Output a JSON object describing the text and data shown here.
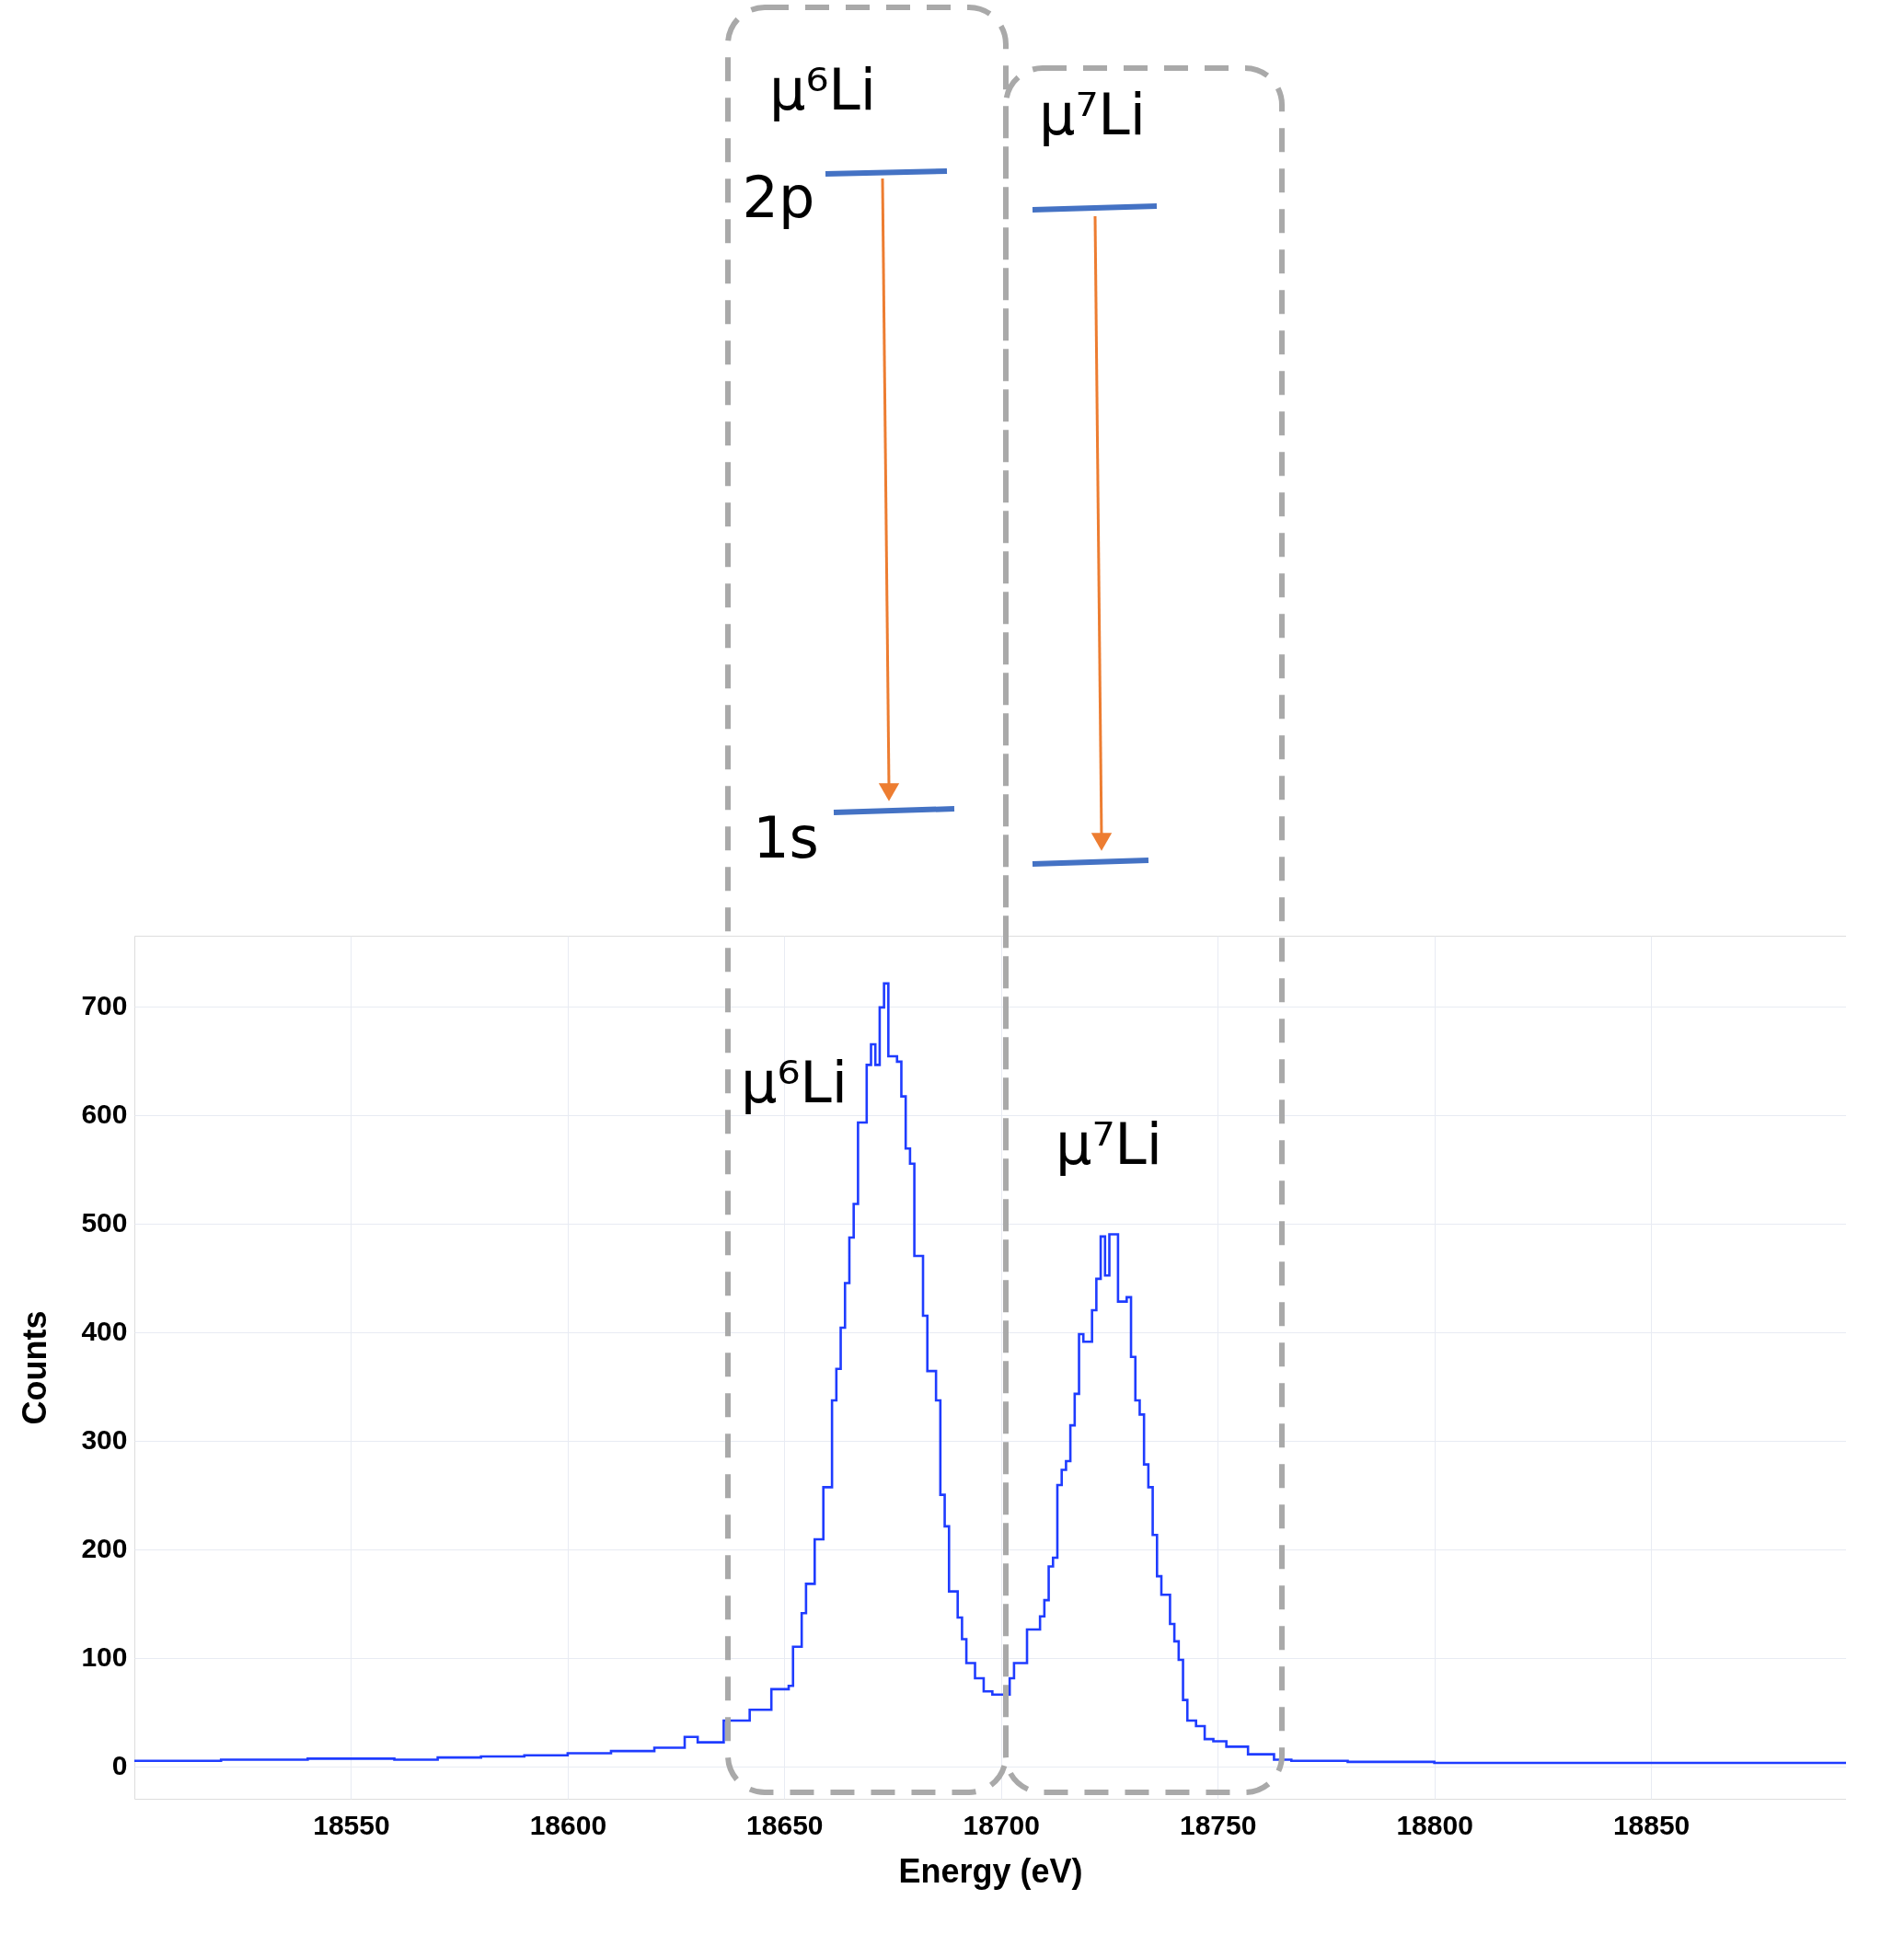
{
  "chart_data": {
    "type": "step",
    "xlabel": "Energy (eV)",
    "ylabel": "Counts",
    "xlim": [
      18500,
      18895
    ],
    "ylim": [
      -30,
      765
    ],
    "xticks": [
      18550,
      18600,
      18650,
      18700,
      18750,
      18800,
      18850
    ],
    "yticks": [
      0,
      100,
      200,
      300,
      400,
      500,
      600,
      700
    ],
    "grid": true,
    "line_style": "solid",
    "series": [
      {
        "color": "#1f3cff",
        "x": [
          18500,
          18520,
          18540,
          18560,
          18570,
          18580,
          18590,
          18600,
          18610,
          18620,
          18627,
          18630,
          18636,
          18642,
          18647,
          18651,
          18652,
          18654,
          18655,
          18657,
          18659,
          18661,
          18662,
          18663,
          18664,
          18665,
          18666,
          18667,
          18669,
          18670,
          18671,
          18672,
          18673,
          18674,
          18676,
          18677,
          18678,
          18679,
          18680,
          18682,
          18683,
          18685,
          18686,
          18687,
          18688,
          18690,
          18691,
          18692,
          18694,
          18696,
          18698,
          18700,
          18702,
          18703,
          18706,
          18709,
          18710,
          18711,
          18712,
          18713,
          18714,
          18715,
          18716,
          18717,
          18718,
          18719,
          18721,
          18722,
          18723,
          18724,
          18725,
          18726,
          18727,
          18729,
          18730,
          18731,
          18732,
          18733,
          18734,
          18735,
          18736,
          18737,
          18739,
          18740,
          18741,
          18742,
          18743,
          18745,
          18747,
          18749,
          18752,
          18757,
          18763,
          18767,
          18780,
          18800,
          18820,
          18850,
          18880,
          18895
        ],
        "values": [
          5,
          6,
          7,
          6,
          8,
          9,
          10,
          12,
          14,
          17,
          27,
          22,
          42,
          52,
          71,
          74,
          110,
          141,
          168,
          209,
          257,
          337,
          366,
          404,
          445,
          487,
          518,
          593,
          646,
          665,
          646,
          699,
          721,
          654,
          649,
          617,
          569,
          555,
          470,
          415,
          364,
          337,
          250,
          221,
          161,
          137,
          117,
          95,
          81,
          69,
          66,
          66,
          81,
          95,
          126,
          138,
          153,
          184,
          192,
          259,
          273,
          281,
          314,
          343,
          398,
          391,
          420,
          449,
          488,
          452,
          490,
          490,
          428,
          432,
          377,
          337,
          324,
          278,
          257,
          213,
          175,
          158,
          131,
          115,
          98,
          61,
          42,
          37,
          25,
          23,
          18,
          11,
          6,
          5,
          4,
          3,
          3,
          3,
          3,
          3
        ]
      }
    ],
    "annotations": [
      "μ⁶Li",
      "2p",
      "1s",
      "μ⁷Li",
      "μ⁶Li",
      "μ⁷Li"
    ]
  }
}
